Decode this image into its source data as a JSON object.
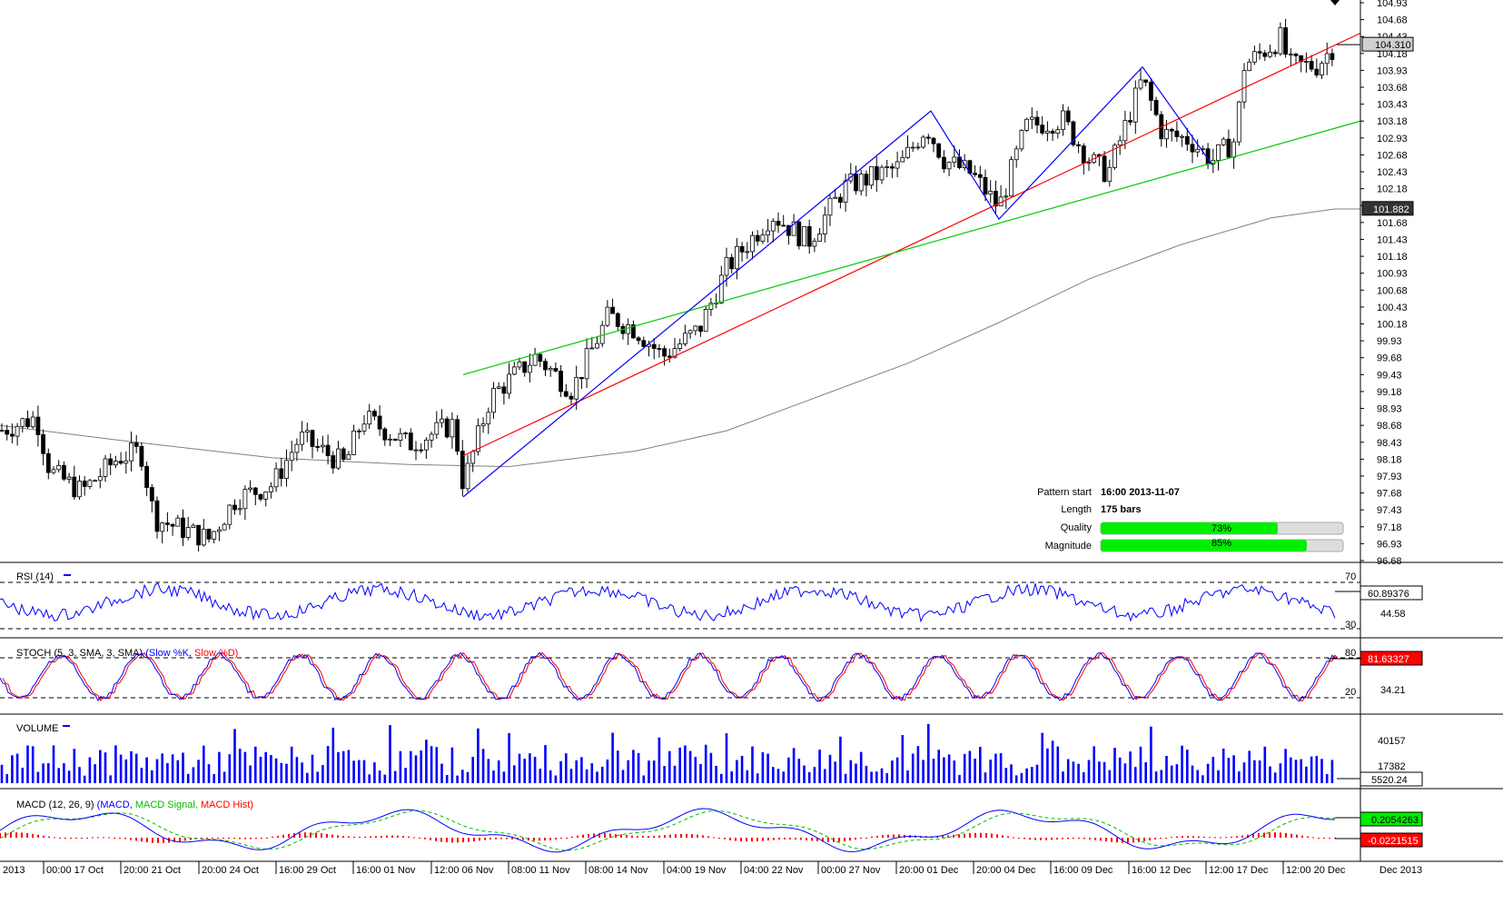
{
  "chart_data": {
    "type": "candlestick",
    "price_axis": {
      "ticks": [
        "104.93",
        "104.68",
        "104.43",
        "104.18",
        "103.93",
        "103.68",
        "103.43",
        "103.18",
        "102.93",
        "102.68",
        "102.43",
        "102.18",
        "101.93",
        "101.68",
        "101.43",
        "101.18",
        "100.93",
        "100.68",
        "100.43",
        "100.18",
        "99.93",
        "99.68",
        "99.43",
        "99.18",
        "98.93",
        "98.68",
        "98.43",
        "98.18",
        "97.93",
        "97.68",
        "97.43",
        "97.18",
        "96.93",
        "96.68"
      ],
      "last_price": "104.310",
      "ma_value": "101.882",
      "range": [
        96.68,
        104.93
      ]
    },
    "time_axis": [
      "2013",
      "00:00 17 Oct",
      "20:00 21 Oct",
      "20:00 24 Oct",
      "16:00 29 Oct",
      "16:00 01 Nov",
      "12:00 06 Nov",
      "08:00 11 Nov",
      "08:00 14 Nov",
      "04:00 19 Nov",
      "04:00 22 Nov",
      "00:00 27 Nov",
      "20:00 01 Dec",
      "20:00 04 Dec",
      "16:00 09 Dec",
      "16:00 12 Dec",
      "12:00 17 Dec",
      "12:00 20 Dec",
      "Dec 2013"
    ],
    "pattern": {
      "upper_line": [
        [
          510,
          98.23
        ],
        [
          1498,
          104.48
        ]
      ],
      "lower_line": [
        [
          510,
          99.43
        ],
        [
          1498,
          103.18
        ]
      ],
      "zigzag": [
        [
          510,
          97.62
        ],
        [
          1025,
          103.33
        ],
        [
          1100,
          101.73
        ],
        [
          1258,
          103.98
        ],
        [
          1335,
          102.53
        ]
      ],
      "start_label": "Pattern start",
      "start_value": "16:00 2013-11-07",
      "length_label": "Length",
      "length_value": "175 bars",
      "quality_label": "Quality",
      "quality_value": "73%",
      "quality_fraction": 0.73,
      "magnitude_label": "Magnitude",
      "magnitude_value": "85%",
      "magnitude_fraction": 0.85
    },
    "moving_average": [
      [
        0,
        98.68
      ],
      [
        150,
        98.43
      ],
      [
        300,
        98.2
      ],
      [
        450,
        98.1
      ],
      [
        560,
        98.07
      ],
      [
        700,
        98.3
      ],
      [
        800,
        98.6
      ],
      [
        900,
        99.1
      ],
      [
        1000,
        99.6
      ],
      [
        1100,
        100.2
      ],
      [
        1200,
        100.85
      ],
      [
        1300,
        101.35
      ],
      [
        1400,
        101.75
      ],
      [
        1470,
        101.88
      ],
      [
        1498,
        101.88
      ]
    ]
  },
  "indicators": {
    "rsi": {
      "title": "RSI (14)",
      "level_high": "70",
      "level_low": "30",
      "value": "60.89376",
      "axis_label": "44.58"
    },
    "stoch": {
      "title_prefix": "STOCH (5, 3, SMA, 3, SMA)",
      "k_label": "(Slow %K,",
      "d_label": "Slow %D)",
      "level_high": "80",
      "level_low": "20",
      "value": "81.63327",
      "axis_label": "34.21"
    },
    "volume": {
      "title": "VOLUME",
      "axis_high": "40157",
      "axis_mid": "17382",
      "value": "5520.24"
    },
    "macd": {
      "title_prefix": "MACD (12, 26, 9)",
      "macd_label": "(MACD,",
      "signal_label": "MACD Signal,",
      "hist_label": "MACD Hist)",
      "value_main": "0.2054263",
      "value_hist": "-0.0221515"
    }
  },
  "colors": {
    "upper_line": "#ff0000",
    "lower_line": "#00cc00",
    "zigzag": "#0000ff",
    "ma": "#808080",
    "rsi": "#0000ff",
    "stoch_k": "#0000ff",
    "stoch_d": "#ff0000",
    "volume": "#0000ff",
    "macd": "#0000ff",
    "macd_signal": "#00bb00",
    "macd_hist": "#ff0000",
    "bar_fill": "#00ee00"
  }
}
